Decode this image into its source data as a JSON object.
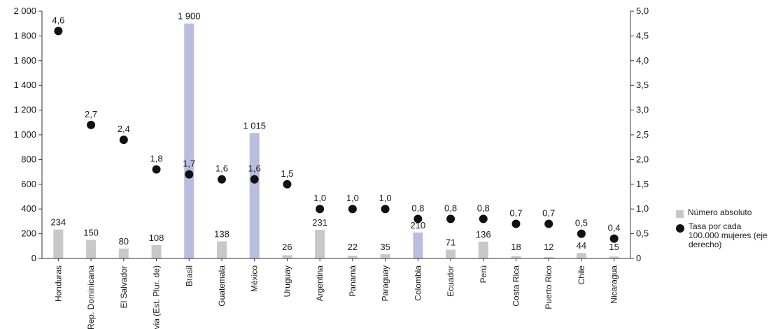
{
  "chart_data": {
    "type": "bar",
    "categories": [
      "Honduras",
      "Rep. Dominicana",
      "El Salvador",
      "Bolivia (Est. Plur. de)",
      "Brasil",
      "Guatemala",
      "México",
      "Uruguay",
      "Argentina",
      "Panamá",
      "Paraguay",
      "Colombia",
      "Ecuador",
      "Perú",
      "Costa Rica",
      "Puerto Rico",
      "Chile",
      "Nicaragua"
    ],
    "series": [
      {
        "name": "Número absoluto",
        "type": "bar",
        "axis": "left",
        "values": [
          234,
          150,
          80,
          108,
          1900,
          138,
          1015,
          26,
          231,
          22,
          35,
          210,
          71,
          136,
          18,
          12,
          44,
          15
        ],
        "labels": [
          "234",
          "150",
          "80",
          "108",
          "1 900",
          "138",
          "1 015",
          "26",
          "231",
          "22",
          "35",
          "210",
          "71",
          "136",
          "18",
          "12",
          "44",
          "15"
        ]
      },
      {
        "name": "Tasa por cada 100.000 mujeres (eje derecho)",
        "type": "scatter",
        "axis": "right",
        "values": [
          4.6,
          2.7,
          2.4,
          1.8,
          1.7,
          1.6,
          1.6,
          1.5,
          1.0,
          1.0,
          1.0,
          0.8,
          0.8,
          0.8,
          0.7,
          0.7,
          0.5,
          0.4
        ],
        "labels": [
          "4,6",
          "2,7",
          "2,4",
          "1,8",
          "1,7",
          "1,6",
          "1,6",
          "1,5",
          "1,0",
          "1,0",
          "1,0",
          "0,8",
          "0,8",
          "0,8",
          "0,7",
          "0,7",
          "0,5",
          "0,4"
        ]
      }
    ],
    "ylim_left": [
      0,
      2000
    ],
    "ylim_right": [
      0,
      5
    ],
    "yticks_left": [
      "0",
      "200",
      "400",
      "600",
      "800",
      "1 000",
      "1 200",
      "1 400",
      "1 600",
      "1 800",
      "2 000"
    ],
    "yticks_right": [
      "0",
      "0,5",
      "1,0",
      "1,5",
      "2,0",
      "2,5",
      "3,0",
      "3,5",
      "4,0",
      "4,5",
      "5,0"
    ],
    "legend_position": "right",
    "highlight_categories": [
      "Brasil",
      "México",
      "Colombia"
    ],
    "colors": {
      "bar": "#c8c8c8",
      "bar_highlight": "#b9bde0",
      "dot": "#111111",
      "axis": "#333333"
    }
  }
}
